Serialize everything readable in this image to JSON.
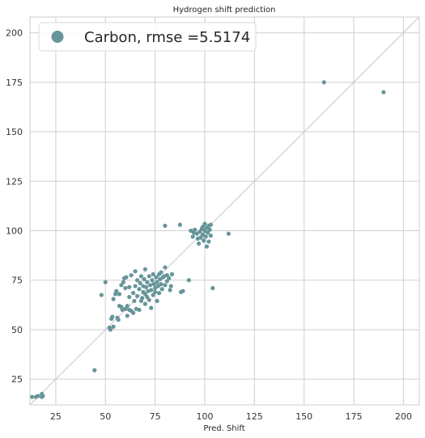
{
  "chart_data": {
    "type": "scatter",
    "title": "Hydrogen shift prediction",
    "xlabel": "Pred. Shift",
    "ylabel": "",
    "xlim": [
      12,
      208
    ],
    "ylim": [
      12,
      208
    ],
    "xticks": [
      25,
      50,
      75,
      100,
      125,
      150,
      175,
      200
    ],
    "yticks": [
      25,
      50,
      75,
      100,
      125,
      150,
      175,
      200
    ],
    "xtick_labels": [
      "25",
      "50",
      "75",
      "100",
      "125",
      "150",
      "175",
      "200"
    ],
    "ytick_labels": [
      "25",
      "50",
      "75",
      "100",
      "125",
      "150",
      "175",
      "200"
    ],
    "grid": true,
    "legend_position": "top-left",
    "reference_line": "y = x",
    "colors": {
      "marker": "#66959a",
      "grid": "#cfcfcf",
      "reference": "#c8c8c8",
      "axes_edge": "#cccccc"
    },
    "series": [
      {
        "name": "Carbon, rmse =5.5174",
        "points": [
          [
            13,
            16
          ],
          [
            15,
            16
          ],
          [
            16,
            16.5
          ],
          [
            18,
            16
          ],
          [
            18,
            17.5
          ],
          [
            18.5,
            16.5
          ],
          [
            44.5,
            29.5
          ],
          [
            48,
            67.5
          ],
          [
            50,
            74
          ],
          [
            52,
            51
          ],
          [
            52.5,
            50
          ],
          [
            53,
            55.5
          ],
          [
            53.5,
            56.5
          ],
          [
            54,
            51.5
          ],
          [
            54,
            65.5
          ],
          [
            55,
            68
          ],
          [
            55.5,
            69.5
          ],
          [
            56,
            56
          ],
          [
            56.5,
            55
          ],
          [
            57,
            68
          ],
          [
            57,
            62
          ],
          [
            58,
            61.5
          ],
          [
            58,
            72.5
          ],
          [
            58.5,
            60
          ],
          [
            59,
            74
          ],
          [
            59.5,
            76
          ],
          [
            60,
            60.5
          ],
          [
            60,
            71
          ],
          [
            60.5,
            76.5
          ],
          [
            61,
            62
          ],
          [
            61,
            57
          ],
          [
            62,
            60
          ],
          [
            62,
            66.5
          ],
          [
            62,
            71.5
          ],
          [
            63,
            59.5
          ],
          [
            63,
            77.5
          ],
          [
            64,
            58.5
          ],
          [
            64,
            68.5
          ],
          [
            64.5,
            64.5
          ],
          [
            65,
            72
          ],
          [
            65,
            79.5
          ],
          [
            65.5,
            60.5
          ],
          [
            66,
            67
          ],
          [
            66,
            75
          ],
          [
            67,
            60
          ],
          [
            67,
            70.5
          ],
          [
            67.5,
            73.5
          ],
          [
            68,
            64.5
          ],
          [
            68,
            77
          ],
          [
            68.5,
            66
          ],
          [
            69,
            72
          ],
          [
            69,
            69
          ],
          [
            69.5,
            75.5
          ],
          [
            70,
            63
          ],
          [
            70,
            68
          ],
          [
            70,
            80.5
          ],
          [
            70.5,
            71.5
          ],
          [
            71,
            66.5
          ],
          [
            71,
            74
          ],
          [
            71.5,
            69.5
          ],
          [
            72,
            77
          ],
          [
            72,
            65
          ],
          [
            72.5,
            72.5
          ],
          [
            73,
            70
          ],
          [
            73,
            61
          ],
          [
            73.5,
            75
          ],
          [
            74,
            67.5
          ],
          [
            74,
            78
          ],
          [
            74.5,
            73
          ],
          [
            75,
            71
          ],
          [
            75,
            69
          ],
          [
            75.5,
            76.5
          ],
          [
            76,
            74
          ],
          [
            76,
            64.5
          ],
          [
            76.5,
            72
          ],
          [
            77,
            78
          ],
          [
            77,
            68.5
          ],
          [
            77.5,
            75.5
          ],
          [
            78,
            73
          ],
          [
            78,
            79
          ],
          [
            78.5,
            70.5
          ],
          [
            79,
            76.5
          ],
          [
            79.5,
            77
          ],
          [
            80,
            72.5
          ],
          [
            80,
            81.5
          ],
          [
            81,
            77.5
          ],
          [
            81,
            74.5
          ],
          [
            82,
            76
          ],
          [
            82.5,
            70
          ],
          [
            83,
            72
          ],
          [
            83.5,
            78
          ],
          [
            88,
            69
          ],
          [
            89,
            69.5
          ],
          [
            92,
            75
          ],
          [
            93,
            100
          ],
          [
            94,
            97
          ],
          [
            94.5,
            99
          ],
          [
            95,
            100.5
          ],
          [
            96,
            98.5
          ],
          [
            96.5,
            96
          ],
          [
            97,
            93.5
          ],
          [
            97.5,
            99.5
          ],
          [
            98,
            96.5
          ],
          [
            98.5,
            101
          ],
          [
            99,
            98
          ],
          [
            99,
            102
          ],
          [
            99.5,
            95
          ],
          [
            100,
            100
          ],
          [
            100,
            103.5
          ],
          [
            100.5,
            97
          ],
          [
            101,
            101.5
          ],
          [
            101,
            92
          ],
          [
            101.5,
            99
          ],
          [
            102,
            102.5
          ],
          [
            102,
            94.5
          ],
          [
            102.5,
            100.5
          ],
          [
            103,
            97.5
          ],
          [
            103,
            103
          ],
          [
            104,
            71
          ],
          [
            112,
            98.5
          ],
          [
            80,
            102.5
          ],
          [
            87.5,
            103
          ],
          [
            160,
            175
          ],
          [
            190,
            170
          ]
        ]
      }
    ]
  }
}
